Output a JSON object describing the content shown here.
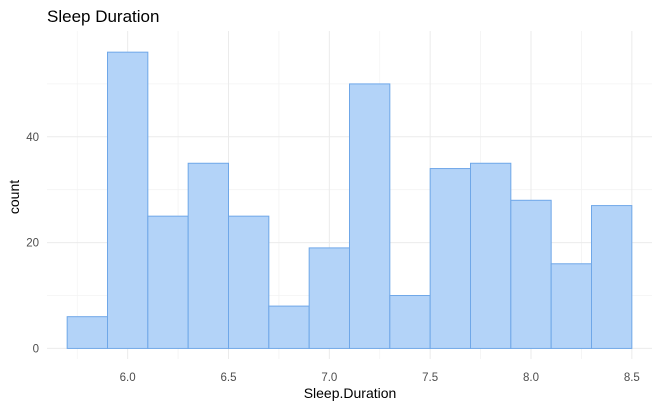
{
  "chart_data": {
    "type": "bar",
    "title": "Sleep Duration",
    "xlabel": "Sleep.Duration",
    "ylabel": "count",
    "bin_width": 0.2,
    "bins": [
      {
        "start": 5.7,
        "end": 5.9,
        "count": 6
      },
      {
        "start": 5.9,
        "end": 6.1,
        "count": 56
      },
      {
        "start": 6.1,
        "end": 6.3,
        "count": 25
      },
      {
        "start": 6.3,
        "end": 6.5,
        "count": 35
      },
      {
        "start": 6.5,
        "end": 6.7,
        "count": 25
      },
      {
        "start": 6.7,
        "end": 6.9,
        "count": 8
      },
      {
        "start": 6.9,
        "end": 7.1,
        "count": 19
      },
      {
        "start": 7.1,
        "end": 7.3,
        "count": 50
      },
      {
        "start": 7.3,
        "end": 7.5,
        "count": 10
      },
      {
        "start": 7.5,
        "end": 7.7,
        "count": 34
      },
      {
        "start": 7.7,
        "end": 7.9,
        "count": 35
      },
      {
        "start": 7.9,
        "end": 8.1,
        "count": 28
      },
      {
        "start": 8.1,
        "end": 8.3,
        "count": 16
      },
      {
        "start": 8.3,
        "end": 8.5,
        "count": 27
      }
    ],
    "xlim": [
      5.6,
      8.6
    ],
    "ylim": [
      -2,
      60
    ],
    "x_ticks": [
      6.0,
      6.5,
      7.0,
      7.5,
      8.0,
      8.5
    ],
    "x_tick_labels": [
      "6.0",
      "6.5",
      "7.0",
      "7.5",
      "8.0",
      "8.5"
    ],
    "y_ticks": [
      0,
      20,
      40
    ],
    "y_tick_labels": [
      "0",
      "20",
      "40"
    ],
    "grid": true,
    "legend": "none",
    "colors": {
      "bar_fill": "#b3d3f8",
      "bar_stroke": "#6fa7e8",
      "grid": "#ebebeb"
    }
  }
}
